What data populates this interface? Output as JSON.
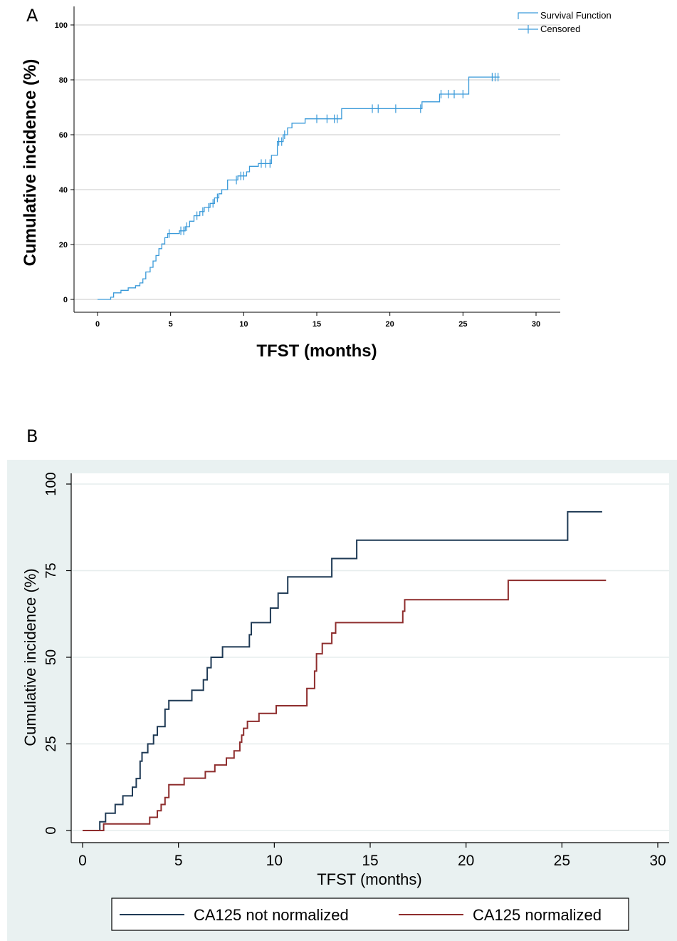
{
  "panel_labels": {
    "a": "A",
    "b": "B"
  },
  "colors": {
    "a_line": "#3a9ad9",
    "a_grid": "#c9c9c9",
    "b_background": "#e9f1f1",
    "b_line_not_normalized": "#1f3a55",
    "b_line_normalized": "#8e2d2d"
  },
  "chart_data": [
    {
      "type": "line",
      "panel": "A",
      "xlabel": "TFST (months)",
      "ylabel": "Cumulative incidence (%)",
      "xlim": [
        0,
        30
      ],
      "ylim": [
        0,
        100
      ],
      "x_ticks": [
        "0",
        "5",
        "10",
        "15",
        "20",
        "25",
        "30"
      ],
      "y_ticks": [
        "0",
        "20",
        "40",
        "60",
        "80",
        "100"
      ],
      "grid": true,
      "legend_position": "top-right",
      "legend": [
        "Survival Function",
        "Censored"
      ],
      "series": [
        {
          "name": "Survival Function",
          "step": [
            [
              0,
              0
            ],
            [
              0.9,
              0
            ],
            [
              0.9,
              0.8
            ],
            [
              1.1,
              0.8
            ],
            [
              1.1,
              2.4
            ],
            [
              1.6,
              2.4
            ],
            [
              1.6,
              3.3
            ],
            [
              2.1,
              3.3
            ],
            [
              2.1,
              4.2
            ],
            [
              2.6,
              4.2
            ],
            [
              2.6,
              5.0
            ],
            [
              2.9,
              5.0
            ],
            [
              2.9,
              6.0
            ],
            [
              3.1,
              6.0
            ],
            [
              3.1,
              7.5
            ],
            [
              3.3,
              7.5
            ],
            [
              3.3,
              10.0
            ],
            [
              3.6,
              10.0
            ],
            [
              3.6,
              11.7
            ],
            [
              3.8,
              11.7
            ],
            [
              3.8,
              14.0
            ],
            [
              4.0,
              14.0
            ],
            [
              4.0,
              16.0
            ],
            [
              4.2,
              16.0
            ],
            [
              4.2,
              18.5
            ],
            [
              4.4,
              18.5
            ],
            [
              4.4,
              20.2
            ],
            [
              4.6,
              20.2
            ],
            [
              4.6,
              22.5
            ],
            [
              4.8,
              22.5
            ],
            [
              4.8,
              24.0
            ],
            [
              5.6,
              24.0
            ],
            [
              5.6,
              25.0
            ],
            [
              6.0,
              25.0
            ],
            [
              6.0,
              26.5
            ],
            [
              6.3,
              26.5
            ],
            [
              6.3,
              28.5
            ],
            [
              6.6,
              28.5
            ],
            [
              6.6,
              30.5
            ],
            [
              7.0,
              30.5
            ],
            [
              7.0,
              32.0
            ],
            [
              7.3,
              32.0
            ],
            [
              7.3,
              33.5
            ],
            [
              7.7,
              33.5
            ],
            [
              7.7,
              35.0
            ],
            [
              8.0,
              35.0
            ],
            [
              8.0,
              37.0
            ],
            [
              8.3,
              37.0
            ],
            [
              8.3,
              38.5
            ],
            [
              8.5,
              38.5
            ],
            [
              8.5,
              40.0
            ],
            [
              8.9,
              40.0
            ],
            [
              8.9,
              43.5
            ],
            [
              9.6,
              43.5
            ],
            [
              9.6,
              45.0
            ],
            [
              10.2,
              45.0
            ],
            [
              10.2,
              46.5
            ],
            [
              10.4,
              46.5
            ],
            [
              10.4,
              48.5
            ],
            [
              11.0,
              48.5
            ],
            [
              11.0,
              49.5
            ],
            [
              11.9,
              49.5
            ],
            [
              11.9,
              52.5
            ],
            [
              12.3,
              52.5
            ],
            [
              12.3,
              57.5
            ],
            [
              12.7,
              57.5
            ],
            [
              12.7,
              60.0
            ],
            [
              13.0,
              60.0
            ],
            [
              13.0,
              62.5
            ],
            [
              13.3,
              62.5
            ],
            [
              13.3,
              64.2
            ],
            [
              14.2,
              64.2
            ],
            [
              14.2,
              65.8
            ],
            [
              16.7,
              65.8
            ],
            [
              16.7,
              69.5
            ],
            [
              22.2,
              69.5
            ],
            [
              22.2,
              72.0
            ],
            [
              23.4,
              72.0
            ],
            [
              23.4,
              74.8
            ],
            [
              25.4,
              74.8
            ],
            [
              25.4,
              81.0
            ],
            [
              27.5,
              81.0
            ]
          ]
        },
        {
          "name": "Censored",
          "marks": [
            [
              4.9,
              24.0
            ],
            [
              5.7,
              25.0
            ],
            [
              5.9,
              25.0
            ],
            [
              6.1,
              26.5
            ],
            [
              6.8,
              30.5
            ],
            [
              7.2,
              32.0
            ],
            [
              7.6,
              33.5
            ],
            [
              7.9,
              35.0
            ],
            [
              8.2,
              37.0
            ],
            [
              9.5,
              43.5
            ],
            [
              9.8,
              45.0
            ],
            [
              10.0,
              45.0
            ],
            [
              11.2,
              49.5
            ],
            [
              11.5,
              49.5
            ],
            [
              11.8,
              49.5
            ],
            [
              12.4,
              57.5
            ],
            [
              12.6,
              57.5
            ],
            [
              12.8,
              60.0
            ],
            [
              15.0,
              65.8
            ],
            [
              15.7,
              65.8
            ],
            [
              16.2,
              65.8
            ],
            [
              16.4,
              65.8
            ],
            [
              18.8,
              69.5
            ],
            [
              19.2,
              69.5
            ],
            [
              20.4,
              69.5
            ],
            [
              22.1,
              69.5
            ],
            [
              23.5,
              74.8
            ],
            [
              24.0,
              74.8
            ],
            [
              24.4,
              74.8
            ],
            [
              25.0,
              74.8
            ],
            [
              27.0,
              81.0
            ],
            [
              27.2,
              81.0
            ],
            [
              27.4,
              81.0
            ]
          ]
        }
      ]
    },
    {
      "type": "line",
      "panel": "B",
      "xlabel": "TFST (months)",
      "ylabel": "Cumulative incidence (%)",
      "xlim": [
        0,
        30
      ],
      "ylim": [
        0,
        100
      ],
      "x_ticks": [
        "0",
        "5",
        "10",
        "15",
        "20",
        "25",
        "30"
      ],
      "y_ticks": [
        "0",
        "25",
        "50",
        "75",
        "100"
      ],
      "grid": true,
      "legend_position": "bottom",
      "legend": [
        "CA125 not normalized",
        "CA125 normalized"
      ],
      "series": [
        {
          "name": "CA125 not normalized",
          "step": [
            [
              0,
              0
            ],
            [
              0.9,
              0
            ],
            [
              0.9,
              2.5
            ],
            [
              1.2,
              2.5
            ],
            [
              1.2,
              5.0
            ],
            [
              1.7,
              5.0
            ],
            [
              1.7,
              7.5
            ],
            [
              2.1,
              7.5
            ],
            [
              2.1,
              10.0
            ],
            [
              2.6,
              10.0
            ],
            [
              2.6,
              12.5
            ],
            [
              2.8,
              12.5
            ],
            [
              2.8,
              15.0
            ],
            [
              3.0,
              15.0
            ],
            [
              3.0,
              20.0
            ],
            [
              3.1,
              20.0
            ],
            [
              3.1,
              22.5
            ],
            [
              3.4,
              22.5
            ],
            [
              3.4,
              25.0
            ],
            [
              3.7,
              25.0
            ],
            [
              3.7,
              27.5
            ],
            [
              3.9,
              27.5
            ],
            [
              3.9,
              30.0
            ],
            [
              4.3,
              30.0
            ],
            [
              4.3,
              35.0
            ],
            [
              4.5,
              35.0
            ],
            [
              4.5,
              37.5
            ],
            [
              5.7,
              37.5
            ],
            [
              5.7,
              40.5
            ],
            [
              6.3,
              40.5
            ],
            [
              6.3,
              43.5
            ],
            [
              6.5,
              43.5
            ],
            [
              6.5,
              47.0
            ],
            [
              6.7,
              47.0
            ],
            [
              6.7,
              50.0
            ],
            [
              7.3,
              50.0
            ],
            [
              7.3,
              53.0
            ],
            [
              8.7,
              53.0
            ],
            [
              8.7,
              56.5
            ],
            [
              8.8,
              56.5
            ],
            [
              8.8,
              60.0
            ],
            [
              9.8,
              60.0
            ],
            [
              9.8,
              64.2
            ],
            [
              10.2,
              64.2
            ],
            [
              10.2,
              68.5
            ],
            [
              10.7,
              68.5
            ],
            [
              10.7,
              73.2
            ],
            [
              13.0,
              73.2
            ],
            [
              13.0,
              78.5
            ],
            [
              14.3,
              78.5
            ],
            [
              14.3,
              83.8
            ],
            [
              25.3,
              83.8
            ],
            [
              25.3,
              92.0
            ],
            [
              27.1,
              92.0
            ]
          ]
        },
        {
          "name": "CA125 normalized",
          "step": [
            [
              0,
              0
            ],
            [
              1.1,
              0
            ],
            [
              1.1,
              1.9
            ],
            [
              3.5,
              1.9
            ],
            [
              3.5,
              3.8
            ],
            [
              3.9,
              3.8
            ],
            [
              3.9,
              5.7
            ],
            [
              4.1,
              5.7
            ],
            [
              4.1,
              7.5
            ],
            [
              4.3,
              7.5
            ],
            [
              4.3,
              9.5
            ],
            [
              4.5,
              9.5
            ],
            [
              4.5,
              13.2
            ],
            [
              5.3,
              13.2
            ],
            [
              5.3,
              15.1
            ],
            [
              6.4,
              15.1
            ],
            [
              6.4,
              17.0
            ],
            [
              6.9,
              17.0
            ],
            [
              6.9,
              18.9
            ],
            [
              7.5,
              18.9
            ],
            [
              7.5,
              20.9
            ],
            [
              7.9,
              20.9
            ],
            [
              7.9,
              23.0
            ],
            [
              8.2,
              23.0
            ],
            [
              8.2,
              25.5
            ],
            [
              8.3,
              25.5
            ],
            [
              8.3,
              27.5
            ],
            [
              8.4,
              27.5
            ],
            [
              8.4,
              29.5
            ],
            [
              8.6,
              29.5
            ],
            [
              8.6,
              31.5
            ],
            [
              9.2,
              31.5
            ],
            [
              9.2,
              33.8
            ],
            [
              10.1,
              33.8
            ],
            [
              10.1,
              36.0
            ],
            [
              11.7,
              36.0
            ],
            [
              11.7,
              41.0
            ],
            [
              12.1,
              41.0
            ],
            [
              12.1,
              46.0
            ],
            [
              12.2,
              46.0
            ],
            [
              12.2,
              51.0
            ],
            [
              12.5,
              51.0
            ],
            [
              12.5,
              54.0
            ],
            [
              13.0,
              54.0
            ],
            [
              13.0,
              57.0
            ],
            [
              13.2,
              57.0
            ],
            [
              13.2,
              60.0
            ],
            [
              16.7,
              60.0
            ],
            [
              16.7,
              63.3
            ],
            [
              16.8,
              63.3
            ],
            [
              16.8,
              66.6
            ],
            [
              22.2,
              66.6
            ],
            [
              22.2,
              72.2
            ],
            [
              27.3,
              72.2
            ]
          ]
        }
      ]
    }
  ]
}
